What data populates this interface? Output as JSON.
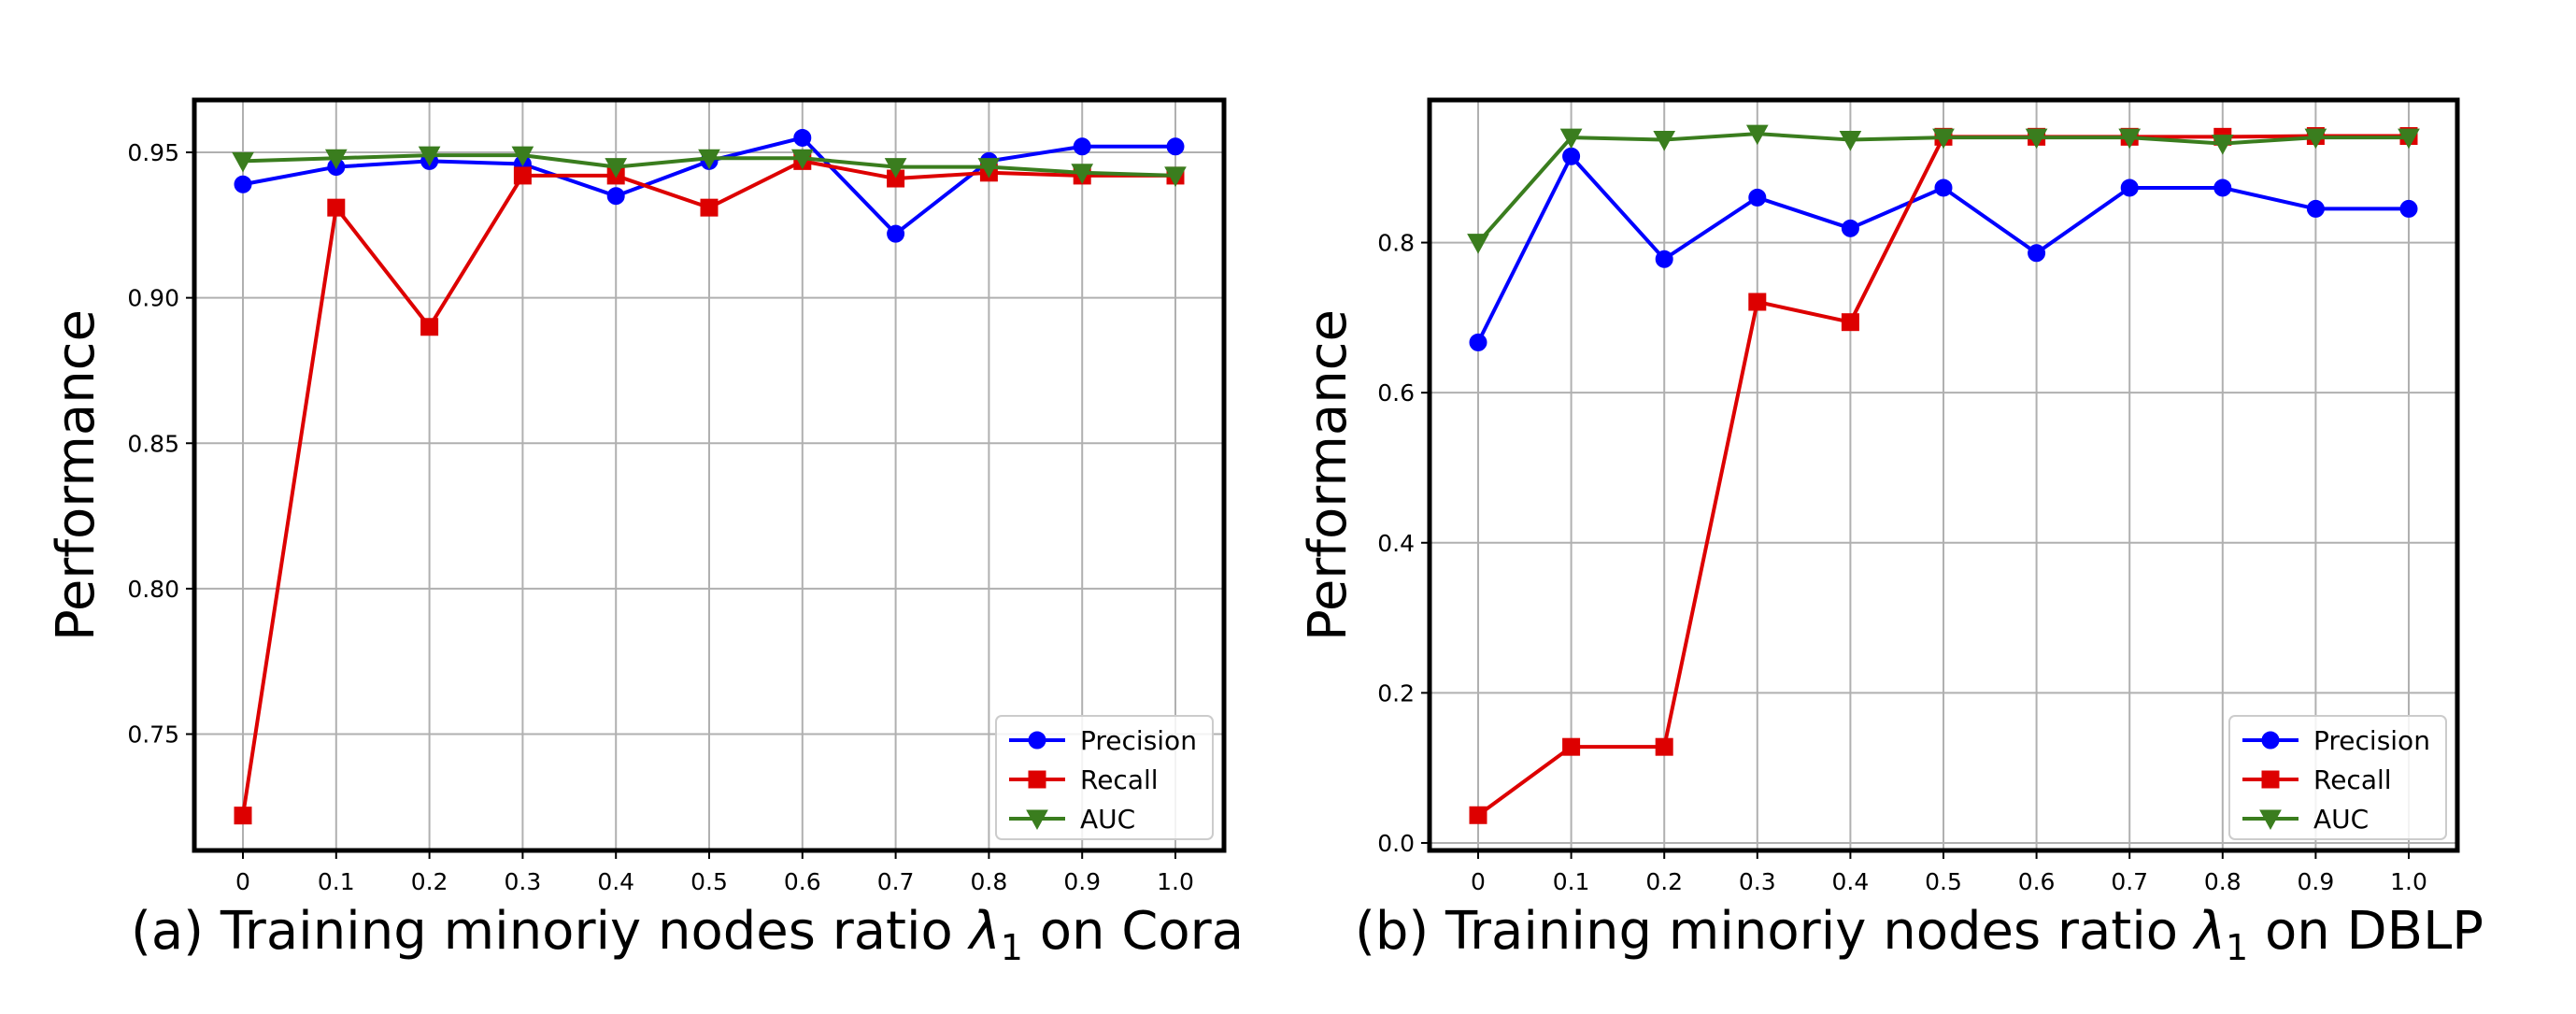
{
  "figure": {
    "background": "#ffffff",
    "grid": true
  },
  "chart_data": [
    {
      "type": "line",
      "panel": "a",
      "caption_prefix": "(a) Training minoriy nodes ratio ",
      "caption_symbol": "λ",
      "caption_subscript": "1",
      "caption_suffix": " on Cora",
      "ylabel": "Performance",
      "x": [
        "0",
        "0.1",
        "0.2",
        "0.3",
        "0.4",
        "0.5",
        "0.6",
        "0.7",
        "0.8",
        "0.9",
        "1.0"
      ],
      "ylim": [
        0.71,
        0.968
      ],
      "yticks": [
        0.75,
        0.8,
        0.85,
        0.9,
        0.95
      ],
      "ytick_labels": [
        "0.75",
        "0.80",
        "0.85",
        "0.90",
        "0.95"
      ],
      "legend_position": "lower right",
      "series": [
        {
          "name": "Precision",
          "color": "#0000ff",
          "marker": "circle",
          "values": [
            0.939,
            0.945,
            0.947,
            0.946,
            0.935,
            0.947,
            0.955,
            0.922,
            0.947,
            0.952,
            0.952
          ]
        },
        {
          "name": "Recall",
          "color": "#dd0000",
          "marker": "square",
          "values": [
            0.722,
            0.931,
            0.89,
            0.942,
            0.942,
            0.931,
            0.947,
            0.941,
            0.943,
            0.942,
            0.942
          ]
        },
        {
          "name": "AUC",
          "color": "#3a7d1e",
          "marker": "triangle-down",
          "values": [
            0.947,
            0.948,
            0.949,
            0.949,
            0.945,
            0.948,
            0.948,
            0.945,
            0.945,
            0.943,
            0.942
          ]
        }
      ]
    },
    {
      "type": "line",
      "panel": "b",
      "caption_prefix": "(b) Training minoriy nodes ratio ",
      "caption_symbol": "λ",
      "caption_subscript": "1",
      "caption_suffix": " on DBLP",
      "ylabel": "Performance",
      "x": [
        "0",
        "0.1",
        "0.2",
        "0.3",
        "0.4",
        "0.5",
        "0.6",
        "0.7",
        "0.8",
        "0.9",
        "1.0"
      ],
      "ylim": [
        -0.01,
        0.99
      ],
      "yticks": [
        0.0,
        0.2,
        0.4,
        0.6,
        0.8
      ],
      "ytick_labels": [
        "0.0",
        "0.2",
        "0.4",
        "0.6",
        "0.8"
      ],
      "legend_position": "lower right",
      "series": [
        {
          "name": "Precision",
          "color": "#0000ff",
          "marker": "circle",
          "values": [
            0.667,
            0.915,
            0.778,
            0.86,
            0.819,
            0.873,
            0.786,
            0.873,
            0.873,
            0.845,
            0.845
          ]
        },
        {
          "name": "Recall",
          "color": "#dd0000",
          "marker": "square",
          "values": [
            0.037,
            0.128,
            0.128,
            0.721,
            0.694,
            0.941,
            0.941,
            0.941,
            0.941,
            0.942,
            0.942
          ]
        },
        {
          "name": "AUC",
          "color": "#3a7d1e",
          "marker": "triangle-down",
          "values": [
            0.8,
            0.94,
            0.937,
            0.945,
            0.937,
            0.94,
            0.94,
            0.94,
            0.932,
            0.94,
            0.94
          ]
        }
      ]
    }
  ]
}
